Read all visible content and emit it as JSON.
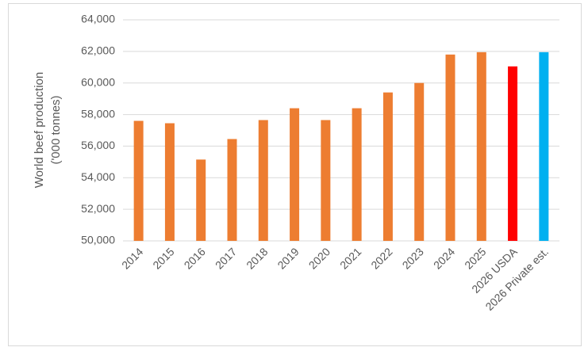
{
  "chart_data": {
    "type": "bar",
    "ylabel": [
      "World beef production",
      "('000 tonnes)"
    ],
    "categories": [
      "2014",
      "2015",
      "2016",
      "2017",
      "2018",
      "2019",
      "2020",
      "2021",
      "2022",
      "2023",
      "2024",
      "2025",
      "2026 USDA",
      "2026 Private est."
    ],
    "values": [
      57600,
      57450,
      55150,
      56450,
      57650,
      58400,
      57650,
      58400,
      59400,
      60000,
      61800,
      61950,
      61050,
      61950
    ],
    "colors": [
      "#ed7d31",
      "#ed7d31",
      "#ed7d31",
      "#ed7d31",
      "#ed7d31",
      "#ed7d31",
      "#ed7d31",
      "#ed7d31",
      "#ed7d31",
      "#ed7d31",
      "#ed7d31",
      "#ed7d31",
      "#ff0000",
      "#00b0f0"
    ],
    "ylim": [
      50000,
      64000
    ],
    "yticks": [
      {
        "value": 50000,
        "label": "50,000"
      },
      {
        "value": 52000,
        "label": "52,000"
      },
      {
        "value": 54000,
        "label": "54,000"
      },
      {
        "value": 56000,
        "label": "56,000"
      },
      {
        "value": 58000,
        "label": "58,000"
      },
      {
        "value": 60000,
        "label": "60,000"
      },
      {
        "value": 62000,
        "label": "62,000"
      },
      {
        "value": 64000,
        "label": "64,000"
      }
    ],
    "grid": true
  }
}
